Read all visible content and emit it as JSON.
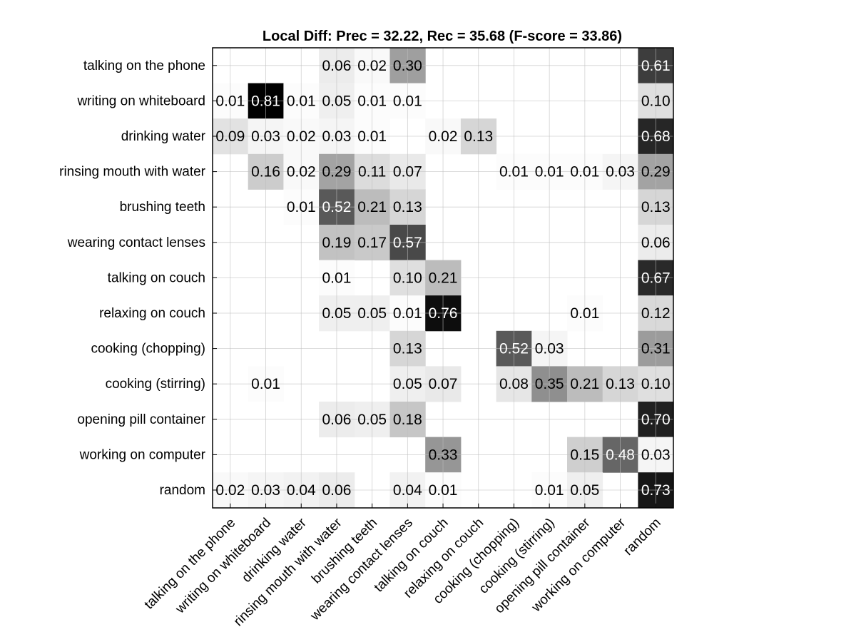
{
  "chart_data": {
    "type": "heatmap",
    "title": "Local Diff: Prec = 32.22, Rec = 35.68 (F-score = 33.86)",
    "xlabel": "",
    "ylabel": "",
    "row_labels": [
      "talking on the phone",
      "writing on whiteboard",
      "drinking water",
      "rinsing mouth with water",
      "brushing teeth",
      "wearing contact lenses",
      "talking on couch",
      "relaxing on couch",
      "cooking (chopping)",
      "cooking (stirring)",
      "opening pill container",
      "working on computer",
      "random"
    ],
    "column_labels": [
      "talking on the phone",
      "writing on whiteboard",
      "drinking water",
      "rinsing mouth with water",
      "brushing teeth",
      "wearing contact lenses",
      "talking on couch",
      "relaxing on couch",
      "cooking (chopping)",
      "cooking (stirring)",
      "opening pill container",
      "working on computer",
      "random"
    ],
    "values": [
      [
        null,
        null,
        null,
        0.06,
        0.02,
        0.3,
        null,
        null,
        null,
        null,
        null,
        null,
        0.61
      ],
      [
        0.01,
        0.81,
        0.01,
        0.05,
        0.01,
        0.01,
        null,
        null,
        null,
        null,
        null,
        null,
        0.1
      ],
      [
        0.09,
        0.03,
        0.02,
        0.03,
        0.01,
        null,
        0.02,
        0.13,
        null,
        null,
        null,
        null,
        0.68
      ],
      [
        null,
        0.16,
        0.02,
        0.29,
        0.11,
        0.07,
        null,
        null,
        0.01,
        0.01,
        0.01,
        0.03,
        0.29
      ],
      [
        null,
        null,
        0.01,
        0.52,
        0.21,
        0.13,
        null,
        null,
        null,
        null,
        null,
        null,
        0.13
      ],
      [
        null,
        null,
        null,
        0.19,
        0.17,
        0.57,
        null,
        null,
        null,
        null,
        null,
        null,
        0.06
      ],
      [
        null,
        null,
        null,
        0.01,
        null,
        0.1,
        0.21,
        null,
        null,
        null,
        null,
        null,
        0.67
      ],
      [
        null,
        null,
        null,
        0.05,
        0.05,
        0.01,
        0.76,
        null,
        null,
        null,
        0.01,
        null,
        0.12
      ],
      [
        null,
        null,
        null,
        null,
        null,
        0.13,
        null,
        null,
        0.52,
        0.03,
        null,
        null,
        0.31
      ],
      [
        null,
        0.01,
        null,
        null,
        null,
        0.05,
        0.07,
        null,
        0.08,
        0.35,
        0.21,
        0.13,
        0.1
      ],
      [
        null,
        null,
        null,
        0.06,
        0.05,
        0.18,
        null,
        null,
        null,
        null,
        null,
        null,
        0.7
      ],
      [
        null,
        null,
        null,
        null,
        null,
        null,
        0.33,
        null,
        null,
        null,
        0.15,
        0.48,
        0.03
      ],
      [
        0.02,
        0.03,
        0.04,
        0.06,
        null,
        0.04,
        0.01,
        null,
        null,
        0.01,
        0.05,
        null,
        0.73
      ]
    ],
    "colormap": "gray-reversed",
    "color_range": [
      0,
      0.8
    ],
    "grid": true
  }
}
